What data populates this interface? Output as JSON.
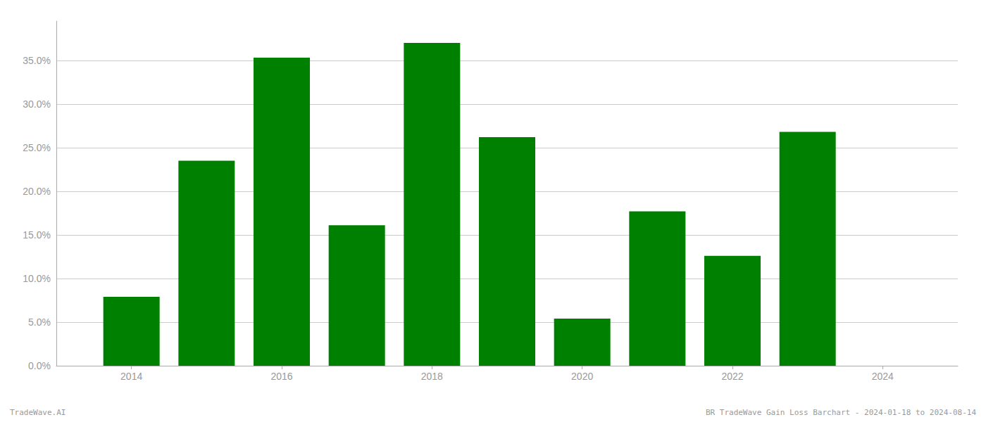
{
  "chart_data": {
    "type": "bar",
    "x": [
      2014,
      2015,
      2016,
      2017,
      2018,
      2019,
      2020,
      2021,
      2022,
      2023
    ],
    "values": [
      0.079,
      0.235,
      0.353,
      0.161,
      0.37,
      0.262,
      0.054,
      0.177,
      0.126,
      0.268
    ],
    "color": "#008000",
    "xlim": [
      2013,
      2025
    ],
    "xticks": [
      2014,
      2016,
      2018,
      2020,
      2022,
      2024
    ],
    "ylim": [
      0,
      0.395
    ],
    "yticks": [
      {
        "value": 0.0,
        "label": "0.0%"
      },
      {
        "value": 0.05,
        "label": "5.0%"
      },
      {
        "value": 0.1,
        "label": "10.0%"
      },
      {
        "value": 0.15,
        "label": "15.0%"
      },
      {
        "value": 0.2,
        "label": "20.0%"
      },
      {
        "value": 0.25,
        "label": "25.0%"
      },
      {
        "value": 0.3,
        "label": "30.0%"
      },
      {
        "value": 0.35,
        "label": "35.0%"
      }
    ],
    "grid": true,
    "annotations": [
      "TradeWave.AI",
      "BR TradeWave Gain Loss Barchart - 2024-01-18 to 2024-08-14"
    ]
  }
}
